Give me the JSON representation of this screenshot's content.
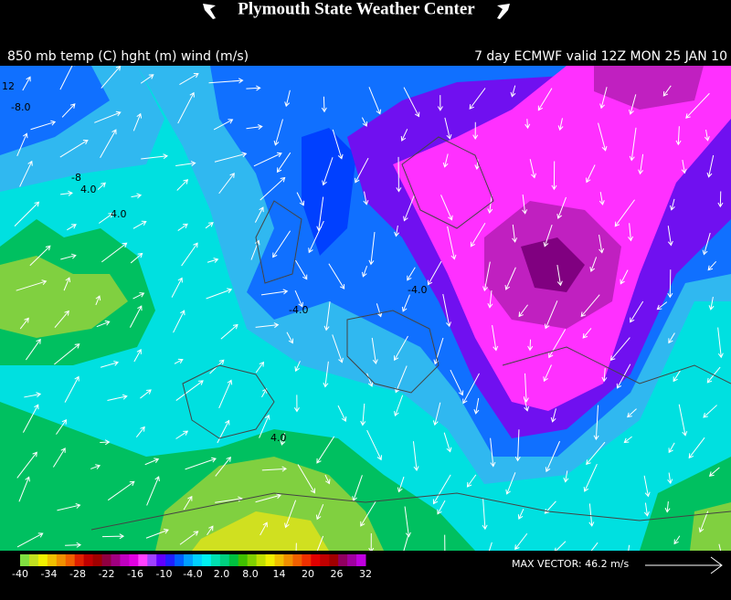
{
  "header": {
    "title": "Plymouth State Weather Center",
    "left_subtitle": "850 mb temp (C) hght (m) wind (m/s)",
    "right_subtitle": "7 day ECMWF valid 12Z MON 25 JAN 10"
  },
  "map": {
    "contour_labels": [
      {
        "text": "12"
      },
      {
        "text": "-8.0"
      },
      {
        "text": "-8"
      },
      {
        "text": "4.0"
      },
      {
        "text": "4.0"
      },
      {
        "text": "-4.0"
      },
      {
        "text": "-4.0"
      },
      {
        "text": "4.0"
      }
    ]
  },
  "colorbar": {
    "labels": [
      "-40",
      "-34",
      "-28",
      "-22",
      "-16",
      "-10",
      "-4.0",
      "2.0",
      "8.0",
      "14",
      "20",
      "26",
      "32"
    ]
  },
  "max_vector": {
    "label": "MAX VECTOR:  46.2 m/s"
  }
}
